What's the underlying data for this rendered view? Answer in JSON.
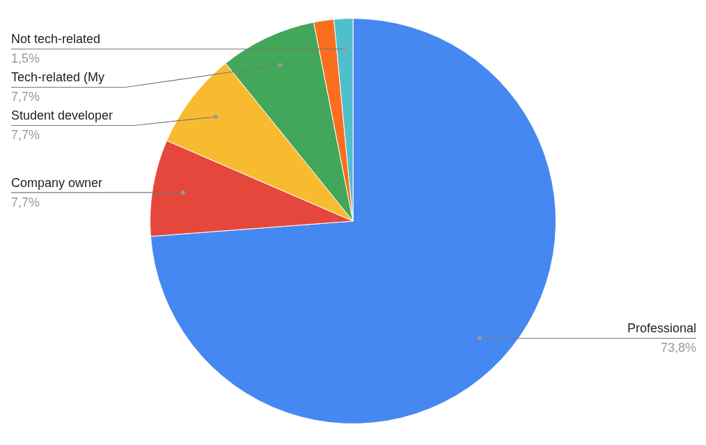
{
  "chart_data": {
    "type": "pie",
    "categories": [
      "Professional",
      "Company owner",
      "Student developer",
      "Tech-related (My",
      null,
      "Not tech-related"
    ],
    "values": [
      73.8,
      7.7,
      7.7,
      7.7,
      1.6,
      1.5
    ],
    "value_labels": [
      "73,8%",
      "7,7%",
      "7,7%",
      "7,7%",
      null,
      "1,5%"
    ],
    "colors": [
      "#4688f1",
      "#e5473c",
      "#f8bb2f",
      "#42a75a",
      "#fb6d1f",
      "#4fbfcb"
    ],
    "legend": false
  }
}
